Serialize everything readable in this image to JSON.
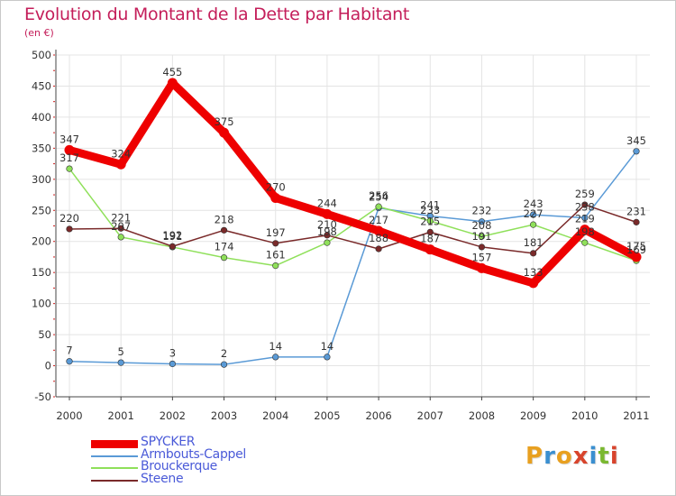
{
  "header": {
    "title": "Evolution du Montant de la Dette par Habitant",
    "subtitle": "(en €)"
  },
  "logo": {
    "text": "Proxiti",
    "colors": [
      "#e8a020",
      "#3a8fd0",
      "#e8a020",
      "#d8442c",
      "#3a8fd0",
      "#7ab830",
      "#d8442c"
    ]
  },
  "chart_data": {
    "type": "line",
    "title": "Evolution du Montant de la Dette par Habitant",
    "ylabel": "(en €)",
    "xlabel": "",
    "x": [
      "2000",
      "2001",
      "2002",
      "2003",
      "2004",
      "2005",
      "2006",
      "2007",
      "2008",
      "2009",
      "2010",
      "2011"
    ],
    "ylim": [
      -50,
      500
    ],
    "yticks": [
      "-50",
      "0",
      "50",
      "100",
      "150",
      "200",
      "250",
      "300",
      "350",
      "400",
      "450",
      "500"
    ],
    "grid": true,
    "legend": "bottom-left",
    "series": [
      {
        "name": "SPYCKER",
        "color": "#ee0000",
        "values": [
          347,
          324,
          455,
          375,
          270,
          244,
          217,
          187,
          157,
          133,
          219,
          175
        ],
        "labels": [
          "347",
          "324",
          "455",
          "375",
          "270",
          "244",
          "217",
          "187",
          "157",
          "133",
          "219",
          "175"
        ]
      },
      {
        "name": "Armbouts-Cappel",
        "color": "#5a9ad6",
        "values": [
          7,
          5,
          3,
          2,
          14,
          14,
          254,
          241,
          232,
          243,
          238,
          345
        ],
        "labels": [
          "7",
          "5",
          "3",
          "2",
          "14",
          "14",
          "254",
          "241",
          "232",
          "243",
          "238",
          "345"
        ]
      },
      {
        "name": "Brouckerque",
        "color": "#8fe05a",
        "values": [
          317,
          207,
          191,
          174,
          161,
          198,
          256,
          233,
          208,
          227,
          198,
          169
        ],
        "labels": [
          "317",
          "207",
          "191",
          "174",
          "161",
          "198",
          "256",
          "233",
          "208",
          "227",
          "198",
          "169"
        ]
      },
      {
        "name": "Steene",
        "color": "#7a2a2a",
        "values": [
          220,
          221,
          192,
          218,
          197,
          210,
          188,
          215,
          191,
          181,
          259,
          231
        ],
        "labels": [
          "220",
          "221",
          "192",
          "218",
          "197",
          "210",
          "188",
          "215",
          "191",
          "181",
          "259",
          "231"
        ]
      }
    ]
  }
}
